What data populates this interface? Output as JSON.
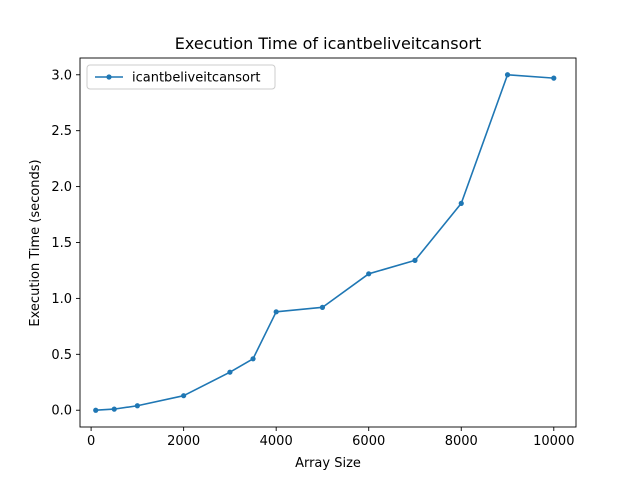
{
  "chart_data": {
    "type": "line",
    "title": "Execution Time of icantbeliveitcansort",
    "xlabel": "Array Size",
    "ylabel": "Execution Time (seconds)",
    "xlim": [
      -240,
      10480
    ],
    "ylim": [
      -0.15,
      3.15
    ],
    "xticks": [
      0,
      2000,
      4000,
      6000,
      8000,
      10000
    ],
    "yticks": [
      0.0,
      0.5,
      1.0,
      1.5,
      2.0,
      2.5,
      3.0
    ],
    "xtick_labels": [
      "0",
      "2000",
      "4000",
      "6000",
      "8000",
      "10000"
    ],
    "ytick_labels": [
      "0.0",
      "0.5",
      "1.0",
      "1.5",
      "2.0",
      "2.5",
      "3.0"
    ],
    "grid": false,
    "legend_position": "top-left",
    "series": [
      {
        "name": "icantbeliveitcansort",
        "color": "#1f77b4",
        "x": [
          100,
          500,
          1000,
          2000,
          3000,
          3500,
          4000,
          5000,
          6000,
          7000,
          8000,
          9000,
          10000
        ],
        "y": [
          0.0,
          0.01,
          0.04,
          0.13,
          0.34,
          0.46,
          0.88,
          0.92,
          1.22,
          1.34,
          1.85,
          3.0,
          2.97
        ]
      }
    ]
  }
}
